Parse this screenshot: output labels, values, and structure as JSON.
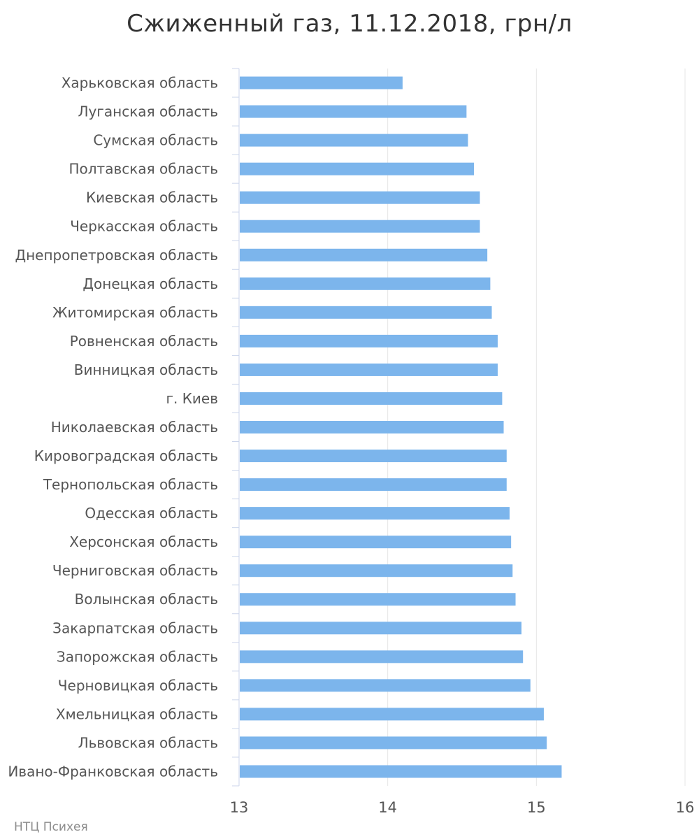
{
  "chart_data": {
    "type": "bar",
    "orientation": "horizontal",
    "title": "Сжиженный газ, 11.12.2018, грн/л",
    "xlabel": "",
    "ylabel": "",
    "categories": [
      "Харьковская область",
      "Луганская область",
      "Сумская область",
      "Полтавская область",
      "Киевская область",
      "Черкасская область",
      "Днепропетровская область",
      "Донецкая область",
      "Житомирская область",
      "Ровненская область",
      "Винницкая область",
      "г. Киев",
      "Николаевская область",
      "Кировоградская область",
      "Тернопольская область",
      "Одесская область",
      "Херсонская область",
      "Черниговская область",
      "Волынская область",
      "Закарпатская область",
      "Запорожская область",
      "Черновицкая область",
      "Хмельницкая область",
      "Львовская область",
      "Ивано-Франковская область"
    ],
    "values": [
      14.1,
      14.53,
      14.54,
      14.58,
      14.62,
      14.62,
      14.67,
      14.69,
      14.7,
      14.74,
      14.74,
      14.77,
      14.78,
      14.8,
      14.8,
      14.82,
      14.83,
      14.84,
      14.86,
      14.9,
      14.91,
      14.96,
      15.05,
      15.07,
      15.17
    ],
    "xlim": [
      13,
      16
    ],
    "xticks": [
      "13",
      "14",
      "15",
      "16"
    ],
    "grid": true,
    "bar_color": "#7cb5ec",
    "grid_color": "#e6e6e6",
    "axis_color": "#ccd6eb",
    "credits": "НТЦ Психея"
  }
}
